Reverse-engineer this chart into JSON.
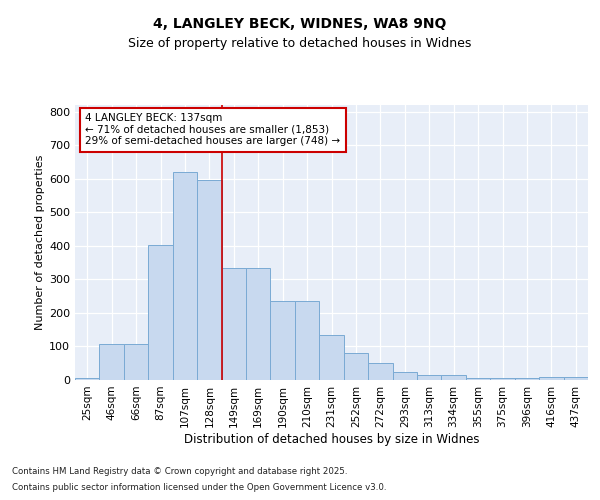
{
  "title1": "4, LANGLEY BECK, WIDNES, WA8 9NQ",
  "title2": "Size of property relative to detached houses in Widnes",
  "xlabel": "Distribution of detached houses by size in Widnes",
  "ylabel": "Number of detached properties",
  "categories": [
    "25sqm",
    "46sqm",
    "66sqm",
    "87sqm",
    "107sqm",
    "128sqm",
    "149sqm",
    "169sqm",
    "190sqm",
    "210sqm",
    "231sqm",
    "252sqm",
    "272sqm",
    "293sqm",
    "313sqm",
    "334sqm",
    "355sqm",
    "375sqm",
    "396sqm",
    "416sqm",
    "437sqm"
  ],
  "hist_values": [
    5,
    108,
    108,
    403,
    620,
    595,
    333,
    333,
    235,
    235,
    135,
    80,
    52,
    25,
    15,
    15,
    5,
    5,
    5,
    8,
    8
  ],
  "bar_color": "#c8d9ef",
  "bar_edge_color": "#7aaad4",
  "bg_color": "#e8eef8",
  "vline_x": 5.5,
  "vline_color": "#cc0000",
  "annotation_text": "4 LANGLEY BECK: 137sqm\n← 71% of detached houses are smaller (1,853)\n29% of semi-detached houses are larger (748) →",
  "annotation_box_color": "#ffffff",
  "annotation_box_edge": "#cc0000",
  "ylim": [
    0,
    820
  ],
  "yticks": [
    0,
    100,
    200,
    300,
    400,
    500,
    600,
    700,
    800
  ],
  "footer1": "Contains HM Land Registry data © Crown copyright and database right 2025.",
  "footer2": "Contains public sector information licensed under the Open Government Licence v3.0."
}
